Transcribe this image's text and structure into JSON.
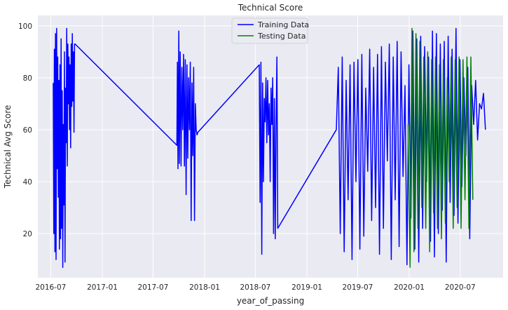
{
  "chart_data": {
    "type": "line",
    "title": "Technical Score",
    "xlabel": "year_of_passing",
    "ylabel": "Technical Avg Score",
    "xlim": [
      "2016-05-16",
      "2020-12-01"
    ],
    "ylim": [
      3,
      104
    ],
    "x_ticks": [
      "2016-07",
      "2017-01",
      "2017-07",
      "2018-01",
      "2018-07",
      "2019-01",
      "2019-07",
      "2020-01",
      "2020-07"
    ],
    "y_ticks": [
      20,
      40,
      60,
      80,
      100
    ],
    "grid": true,
    "background": "#eaeaf2",
    "legend_position": "top-center",
    "series": [
      {
        "name": "Training Data",
        "color": "#0000ff",
        "x": [
          "2016-07-10",
          "2016-07-12",
          "2016-07-14",
          "2016-07-16",
          "2016-07-18",
          "2016-07-20",
          "2016-07-22",
          "2016-07-24",
          "2016-07-26",
          "2016-07-28",
          "2016-07-30",
          "2016-08-01",
          "2016-08-03",
          "2016-08-05",
          "2016-08-07",
          "2016-08-09",
          "2016-08-11",
          "2016-08-13",
          "2016-08-15",
          "2016-08-17",
          "2016-08-19",
          "2016-08-21",
          "2016-08-23",
          "2016-08-25",
          "2016-08-27",
          "2016-08-29",
          "2016-08-31",
          "2016-09-02",
          "2016-09-04",
          "2016-09-06",
          "2016-09-08",
          "2016-09-10",
          "2016-09-12",
          "2016-09-14",
          "2016-09-16",
          "2016-09-18",
          "2016-09-20",
          "2016-09-22",
          "2016-09-24",
          "2016-09-26",
          "2017-09-24",
          "2017-09-26",
          "2017-09-28",
          "2017-10-01",
          "2017-10-03",
          "2017-10-06",
          "2017-10-09",
          "2017-10-12",
          "2017-10-15",
          "2017-10-18",
          "2017-10-21",
          "2017-10-24",
          "2017-10-27",
          "2017-10-30",
          "2017-11-02",
          "2017-11-05",
          "2017-11-08",
          "2017-11-11",
          "2017-11-14",
          "2017-11-17",
          "2017-11-20",
          "2017-11-23",
          "2017-11-26",
          "2017-11-29",
          "2017-12-02",
          "2017-12-05",
          "2017-12-08",
          "2018-07-15",
          "2018-07-18",
          "2018-07-21",
          "2018-07-24",
          "2018-07-27",
          "2018-07-30",
          "2018-08-02",
          "2018-08-05",
          "2018-08-08",
          "2018-08-11",
          "2018-08-14",
          "2018-08-17",
          "2018-08-20",
          "2018-08-23",
          "2018-08-26",
          "2018-08-29",
          "2018-09-01",
          "2018-09-04",
          "2018-09-07",
          "2018-09-10",
          "2018-09-13",
          "2018-09-16",
          "2018-09-19",
          "2019-04-16",
          "2019-04-23",
          "2019-04-30",
          "2019-05-07",
          "2019-05-14",
          "2019-05-21",
          "2019-05-28",
          "2019-06-04",
          "2019-06-11",
          "2019-06-18",
          "2019-06-25",
          "2019-07-02",
          "2019-07-09",
          "2019-07-16",
          "2019-07-23",
          "2019-07-30",
          "2019-08-06",
          "2019-08-13",
          "2019-08-20",
          "2019-08-27",
          "2019-09-03",
          "2019-09-10",
          "2019-09-17",
          "2019-09-24",
          "2019-10-01",
          "2019-10-08",
          "2019-10-15",
          "2019-10-22",
          "2019-10-29",
          "2019-11-05",
          "2019-11-12",
          "2019-11-19",
          "2019-11-26",
          "2019-12-03",
          "2019-12-10",
          "2019-12-17",
          "2019-12-24",
          "2019-12-31",
          "2020-01-07",
          "2020-01-14",
          "2020-01-21",
          "2020-01-28",
          "2020-02-04",
          "2020-02-11",
          "2020-02-18",
          "2020-02-25",
          "2020-03-03",
          "2020-03-10",
          "2020-03-17",
          "2020-03-24",
          "2020-03-31",
          "2020-04-07",
          "2020-04-14",
          "2020-04-21",
          "2020-04-28",
          "2020-05-05",
          "2020-05-12",
          "2020-05-19",
          "2020-05-26",
          "2020-06-02",
          "2020-06-09",
          "2020-06-16",
          "2020-06-23",
          "2020-06-30",
          "2020-07-07",
          "2020-07-14",
          "2020-07-21",
          "2020-07-28",
          "2020-08-04",
          "2020-08-11",
          "2020-08-18",
          "2020-08-25",
          "2020-09-01",
          "2020-09-08",
          "2020-09-15",
          "2020-09-22",
          "2020-09-29"
        ],
        "y": [
          78,
          20,
          91,
          13,
          97,
          10,
          99,
          45,
          88,
          34,
          79,
          14,
          85,
          18,
          95,
          22,
          75,
          7,
          62,
          31,
          90,
          9,
          76,
          55,
          99,
          46,
          93,
          70,
          88,
          60,
          85,
          53,
          93,
          69,
          97,
          71,
          90,
          59,
          93,
          93,
          54,
          86,
          45,
          98,
          47,
          90,
          46,
          84,
          60,
          89,
          46,
          87,
          35,
          85,
          49,
          80,
          60,
          86,
          25,
          78,
          50,
          84,
          25,
          70,
          60,
          58,
          59,
          85,
          32,
          86,
          12,
          78,
          40,
          72,
          63,
          80,
          55,
          79,
          58,
          70,
          40,
          76,
          62,
          80,
          20,
          72,
          18,
          61,
          88,
          22,
          60,
          84,
          20,
          88,
          13,
          79,
          33,
          85,
          10,
          86,
          40,
          87,
          14,
          89,
          19,
          76,
          44,
          91,
          25,
          84,
          30,
          89,
          12,
          92,
          22,
          86,
          48,
          93,
          10,
          88,
          33,
          94,
          15,
          90,
          42,
          77,
          8,
          85,
          26,
          98,
          14,
          95,
          9,
          96,
          22,
          92,
          40,
          88,
          17,
          98,
          11,
          97,
          20,
          93,
          29,
          94,
          9,
          96,
          32,
          91,
          27,
          99,
          24,
          87,
          38,
          80,
          50,
          84,
          18,
          77,
          62,
          79,
          56,
          70,
          68,
          74,
          60
        ]
      },
      {
        "name": "Testing Data",
        "color": "#008000",
        "x": [
          "2019-12-28",
          "2020-01-04",
          "2020-01-11",
          "2020-01-18",
          "2020-01-25",
          "2020-02-01",
          "2020-02-08",
          "2020-02-15",
          "2020-02-22",
          "2020-02-29",
          "2020-03-07",
          "2020-03-14",
          "2020-03-21",
          "2020-03-28",
          "2020-04-04",
          "2020-04-11",
          "2020-04-18",
          "2020-04-25",
          "2020-05-02",
          "2020-05-09",
          "2020-05-16",
          "2020-05-23",
          "2020-05-30",
          "2020-06-06",
          "2020-06-13",
          "2020-06-20",
          "2020-06-27",
          "2020-07-04",
          "2020-07-11",
          "2020-07-18",
          "2020-07-25",
          "2020-08-01",
          "2020-08-08",
          "2020-08-15"
        ],
        "y": [
          62,
          7,
          99,
          13,
          97,
          22,
          94,
          30,
          88,
          22,
          90,
          13,
          87,
          28,
          88,
          22,
          85,
          18,
          87,
          24,
          80,
          40,
          88,
          22,
          87,
          30,
          88,
          22,
          87,
          33,
          88,
          22,
          88,
          33
        ]
      }
    ]
  }
}
